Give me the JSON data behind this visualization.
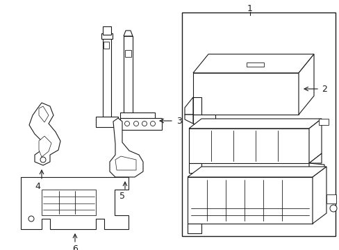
{
  "bg_color": "#ffffff",
  "line_color": "#1a1a1a",
  "lw": 0.8,
  "fig_w": 4.89,
  "fig_h": 3.6,
  "dpi": 100
}
